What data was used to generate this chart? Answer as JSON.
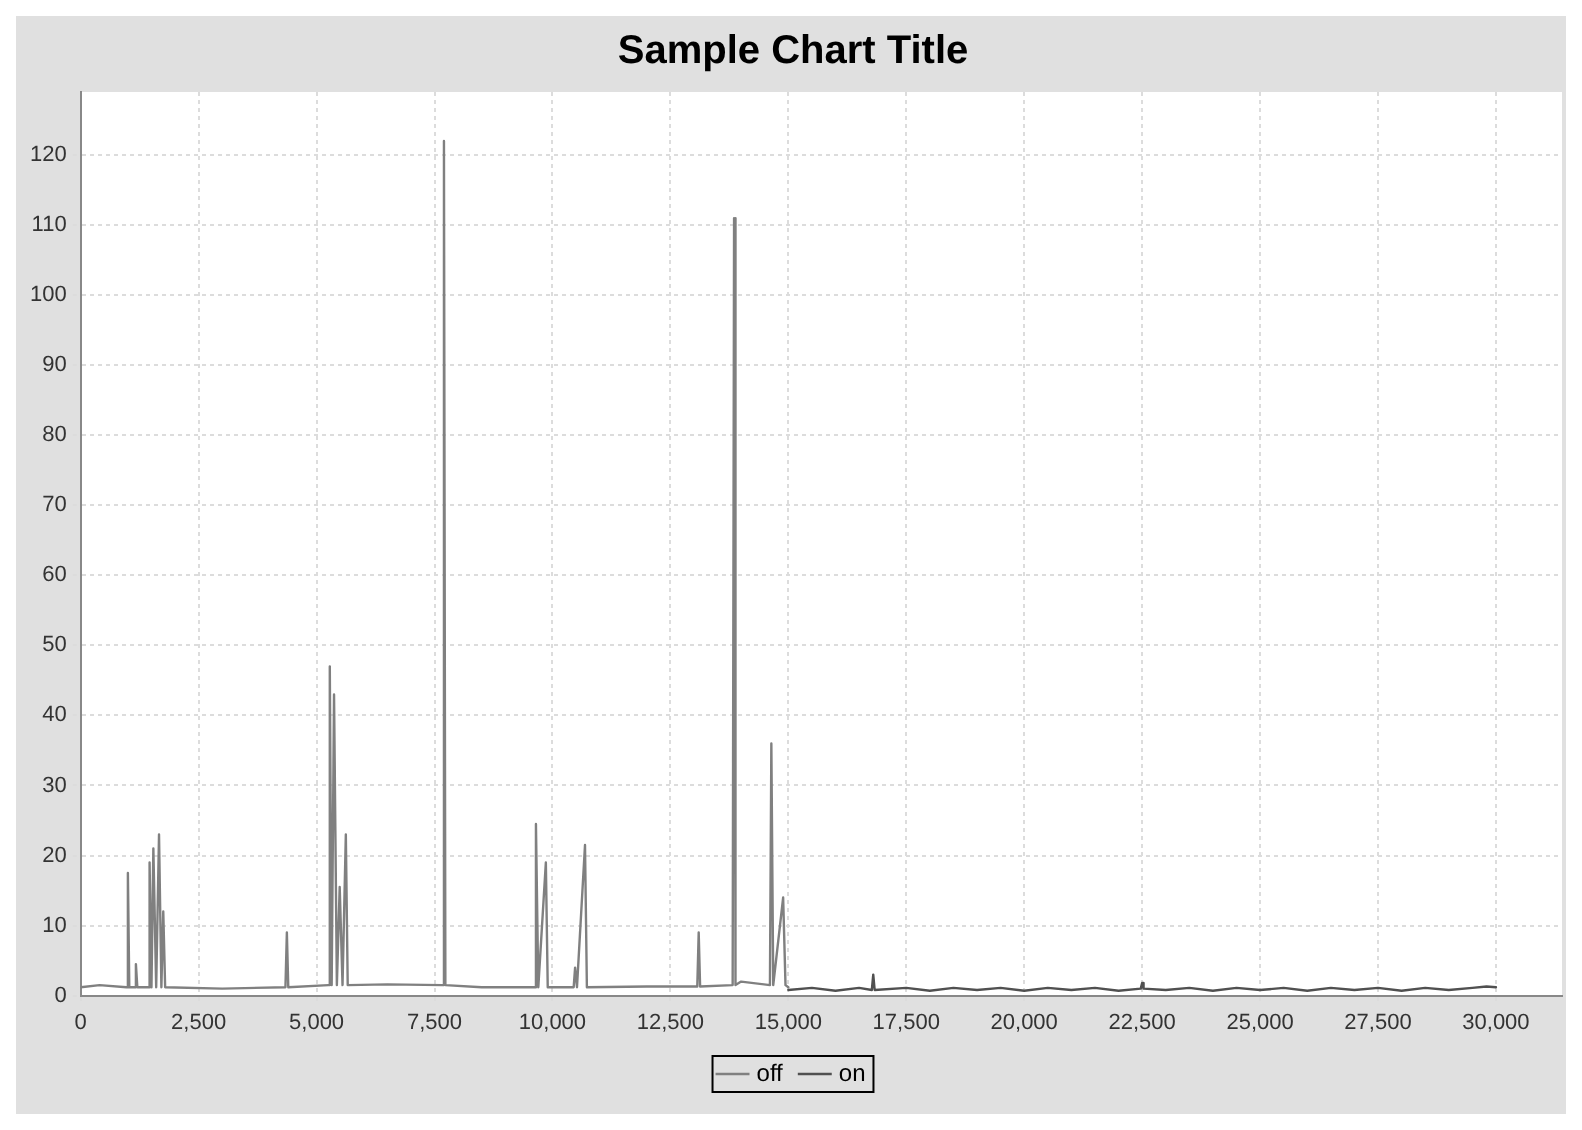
{
  "chart_data": {
    "type": "line",
    "title": "Sample Chart Title",
    "legend": "bottom",
    "grid": true,
    "marker": "none",
    "line_style": "solid",
    "xlim": [
      0,
      31400
    ],
    "ylim": [
      0,
      129
    ],
    "xticks": [
      0,
      {
        "value": 2500,
        "label": "2,500"
      },
      {
        "value": 5000,
        "label": "5,000"
      },
      {
        "value": 7500,
        "label": "7,500"
      },
      {
        "value": 10000,
        "label": "10,000"
      },
      {
        "value": 12500,
        "label": "12,500"
      },
      {
        "value": 15000,
        "label": "15,000"
      },
      {
        "value": 17500,
        "label": "17,500"
      },
      {
        "value": 20000,
        "label": "20,000"
      },
      {
        "value": 22500,
        "label": "22,500"
      },
      {
        "value": 25000,
        "label": "25,000"
      },
      {
        "value": 27500,
        "label": "27,500"
      },
      {
        "value": 30000,
        "label": "30,000"
      }
    ],
    "yticks": [
      0,
      10,
      20,
      30,
      40,
      50,
      60,
      70,
      80,
      90,
      100,
      110,
      120
    ],
    "series": [
      {
        "name": "off",
        "color": "#808080",
        "x": [
          0,
          400,
          970,
          1000,
          1030,
          1140,
          1170,
          1200,
          1430,
          1460,
          1500,
          1540,
          1600,
          1660,
          1710,
          1750,
          1790,
          3000,
          4340,
          4370,
          4400,
          5250,
          5280,
          5320,
          5370,
          5430,
          5490,
          5550,
          5620,
          5660,
          6500,
          7670,
          7700,
          7730,
          8500,
          9620,
          9650,
          9700,
          9860,
          9900,
          10450,
          10480,
          10520,
          10690,
          10730,
          12000,
          13070,
          13100,
          13130,
          13820,
          13850,
          13880,
          14000,
          14610,
          14640,
          14680,
          14890,
          14940,
          15000
        ],
        "values": [
          1.2,
          1.5,
          1.2,
          17.5,
          1.2,
          1.2,
          4.5,
          1.2,
          1.2,
          19,
          1.2,
          21,
          1.2,
          23,
          1.2,
          12,
          1.2,
          1,
          1.2,
          9,
          1.2,
          1.5,
          47,
          1.5,
          43,
          1.5,
          15.5,
          1.5,
          23,
          1.5,
          1.6,
          1.5,
          122,
          1.5,
          1.2,
          1.2,
          24.5,
          1.2,
          19,
          1.2,
          1.2,
          4,
          1.2,
          21.5,
          1.2,
          1.3,
          1.3,
          9,
          1.3,
          1.5,
          111,
          1.5,
          2,
          1.5,
          36,
          1.5,
          14,
          1.5,
          1.2
        ]
      },
      {
        "name": "on",
        "color": "#505050",
        "x": [
          15000,
          15500,
          16000,
          16500,
          16770,
          16800,
          16830,
          17500,
          18000,
          18500,
          19000,
          19500,
          20000,
          20500,
          21000,
          21500,
          22000,
          22470,
          22500,
          22530,
          23000,
          23500,
          24000,
          24500,
          25000,
          25500,
          26000,
          26500,
          27000,
          27500,
          28000,
          28500,
          29000,
          29500,
          29800,
          30000
        ],
        "values": [
          0.8,
          1.1,
          0.7,
          1.1,
          0.8,
          3,
          0.8,
          1.1,
          0.7,
          1.1,
          0.8,
          1.1,
          0.7,
          1.1,
          0.8,
          1.1,
          0.7,
          1,
          1.8,
          1,
          0.8,
          1.1,
          0.7,
          1.1,
          0.8,
          1.1,
          0.7,
          1.1,
          0.8,
          1.1,
          0.7,
          1.1,
          0.8,
          1.1,
          1.3,
          1.2
        ]
      }
    ]
  }
}
